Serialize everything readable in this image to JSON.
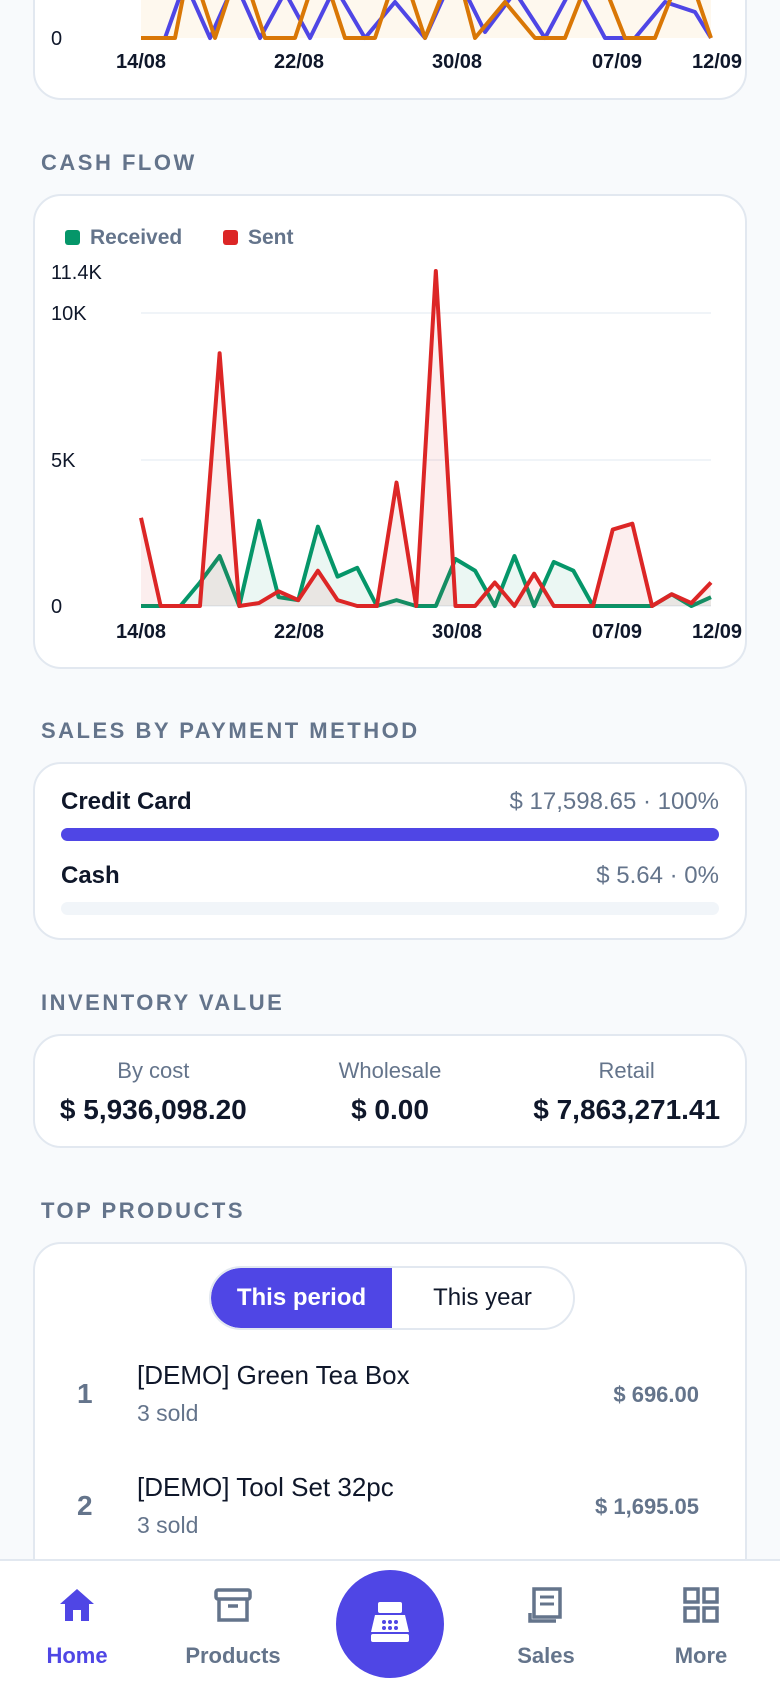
{
  "colors": {
    "accent": "#4f46e5",
    "received": "#059669",
    "sent": "#dc2626",
    "orange": "#d97706",
    "muted": "#64748b"
  },
  "top_chart": {
    "y_tick": "0",
    "x_ticks": [
      "14/08",
      "22/08",
      "30/08",
      "07/09",
      "12/09"
    ]
  },
  "sections": {
    "cash_flow": "CASH FLOW",
    "payment": "SALES BY PAYMENT METHOD",
    "inventory": "INVENTORY VALUE",
    "top_products": "TOP PRODUCTS"
  },
  "chart_data": {
    "type": "line",
    "legend": [
      "Received",
      "Sent"
    ],
    "y_ticks": [
      "11.4K",
      "10K",
      "5K",
      "0"
    ],
    "ylim": [
      0,
      11400
    ],
    "x_ticks": [
      "14/08",
      "22/08",
      "30/08",
      "07/09",
      "12/09"
    ],
    "series": [
      {
        "name": "Received",
        "color": "#059669",
        "values": [
          0,
          0,
          0,
          800,
          1700,
          0,
          2900,
          300,
          200,
          2700,
          1000,
          1300,
          0,
          200,
          0,
          0,
          1600,
          1200,
          0,
          1700,
          0,
          1500,
          1200,
          0,
          0,
          0,
          0,
          400,
          0,
          300
        ]
      },
      {
        "name": "Sent",
        "color": "#dc2626",
        "values": [
          3000,
          0,
          0,
          0,
          8600,
          0,
          100,
          500,
          200,
          1200,
          200,
          0,
          0,
          4200,
          0,
          11400,
          0,
          0,
          800,
          0,
          1100,
          0,
          0,
          0,
          2600,
          2800,
          0,
          400,
          100,
          800
        ]
      }
    ]
  },
  "payment": {
    "rows": [
      {
        "name": "Credit Card",
        "value": "$ 17,598.65 · 100%",
        "percent": 100
      },
      {
        "name": "Cash",
        "value": "$ 5.64 · 0%",
        "percent": 0
      }
    ]
  },
  "inventory": [
    {
      "label": "By cost",
      "value": "$ 5,936,098.20"
    },
    {
      "label": "Wholesale",
      "value": "$ 0.00"
    },
    {
      "label": "Retail",
      "value": "$ 7,863,271.41"
    }
  ],
  "top_products": {
    "tabs": [
      "This period",
      "This year"
    ],
    "items": [
      {
        "rank": "1",
        "name": "[DEMO] Green Tea Box",
        "sub": "3 sold",
        "value": "$ 696.00"
      },
      {
        "rank": "2",
        "name": "[DEMO] Tool Set 32pc",
        "sub": "3 sold",
        "value": "$ 1,695.05"
      }
    ]
  },
  "nav": {
    "home": {
      "label": "Home",
      "icon": "home-icon"
    },
    "products": {
      "label": "Products",
      "icon": "box-icon"
    },
    "pos": {
      "icon": "cash-register-icon"
    },
    "sales": {
      "label": "Sales",
      "icon": "receipt-icon"
    },
    "more": {
      "label": "More",
      "icon": "grid-icon"
    }
  }
}
